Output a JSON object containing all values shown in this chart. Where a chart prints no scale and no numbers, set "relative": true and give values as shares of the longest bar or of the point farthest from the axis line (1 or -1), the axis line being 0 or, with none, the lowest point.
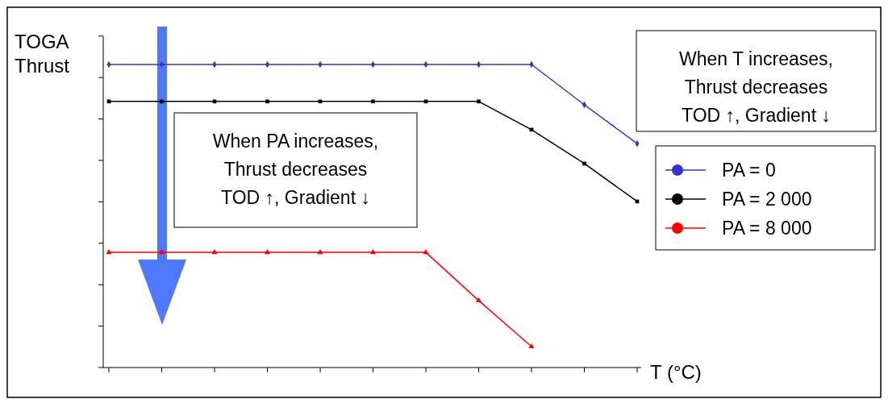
{
  "chart_data": {
    "type": "line",
    "relative": true,
    "xlabel": "T (°C)",
    "ylabel": "TOGA\nThrust",
    "categories": [
      null,
      null,
      null,
      null,
      null,
      null,
      null,
      null,
      null,
      null,
      null
    ],
    "series": [
      {
        "name": "PA = 0",
        "color": "#3333cc",
        "marker": "diamond",
        "values": [
          1,
          1,
          1,
          1,
          1,
          1,
          1,
          1,
          1,
          0.867,
          0.739
        ]
      },
      {
        "name": "PA = 2 000",
        "color": "#000000",
        "marker": "square",
        "values": [
          0.878,
          0.878,
          0.878,
          0.878,
          0.878,
          0.878,
          0.878,
          0.878,
          0.785,
          0.673,
          0.548
        ]
      },
      {
        "name": "PA = 8 000",
        "color": "#ff0000",
        "marker": "triangle",
        "values": [
          0.38,
          0.38,
          0.38,
          0.38,
          0.38,
          0.38,
          0.38,
          0.221,
          0.069,
          null,
          null
        ]
      }
    ],
    "legend": "right",
    "grid": false,
    "annotations": [
      "When PA increases,\nThrust decreases\nTOD ↑, Gradient ↓",
      "When T increases,\nThrust decreases\nTOD ↑, Gradient ↓"
    ]
  }
}
